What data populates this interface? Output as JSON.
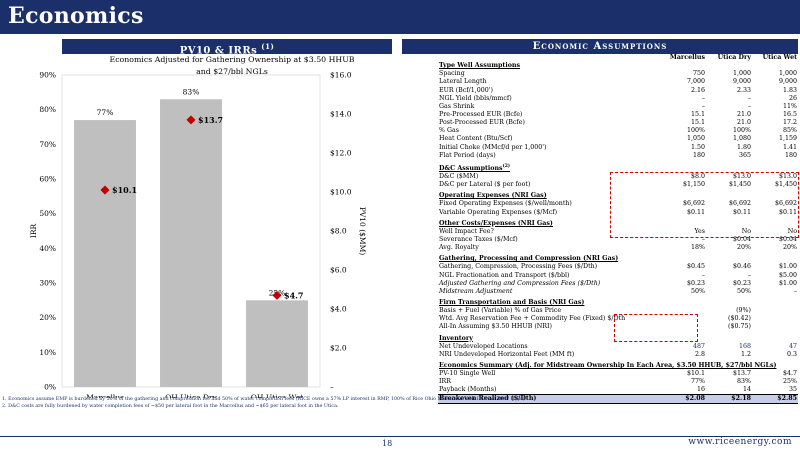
{
  "header": {
    "title": "Economics"
  },
  "left_panel": {
    "section_title": "PV10 & IRRs",
    "section_sup": "(1)",
    "chart_title_line1": "Economics Adjusted for Gathering Ownership at $3.50 HHUB",
    "chart_title_line2": "and $27/bbl NGLs"
  },
  "chart_data": {
    "type": "bar",
    "title": "Economics Adjusted for Gathering Ownership at $3.50 HHUB and $27/bbl NGLs",
    "categories": [
      "Marcellus",
      "OH Utica Dry",
      "OH Utica Wet"
    ],
    "series": [
      {
        "name": "IRR",
        "kind": "bar",
        "axis": "left",
        "values": [
          77,
          83,
          25
        ],
        "labels": [
          "77%",
          "83%",
          "25%"
        ],
        "color": "#bfbfbf"
      },
      {
        "name": "PV10",
        "kind": "marker",
        "axis": "right",
        "values": [
          10.1,
          13.7,
          4.7
        ],
        "labels": [
          "$10.1",
          "$13.7",
          "$4.7"
        ],
        "color": "#c00000"
      }
    ],
    "ylabel": "IRR",
    "y2label": "PV10 ($MM)",
    "ylim": [
      0,
      90
    ],
    "y2lim": [
      0,
      16
    ],
    "yticks": [
      "0%",
      "10%",
      "20%",
      "30%",
      "40%",
      "50%",
      "60%",
      "70%",
      "80%",
      "90%"
    ],
    "y2ticks": [
      "–",
      "$2.0",
      "$4.0",
      "$6.0",
      "$8.0",
      "$10.0",
      "$12.0",
      "$14.0",
      "$16.0"
    ],
    "legend": "bottom"
  },
  "right_panel": {
    "section_title": "Economic Assumptions",
    "columns": [
      "Marcellus",
      "Utica Dry",
      "Utica Wet"
    ],
    "rows": [
      {
        "type": "sec",
        "label": "Type Well Assumptions",
        "values": [
          "",
          "",
          ""
        ]
      },
      {
        "type": "row",
        "label": "Spacing",
        "values": [
          "750",
          "1,000",
          "1,000"
        ]
      },
      {
        "type": "row",
        "label": "Lateral Length",
        "values": [
          "7,000",
          "9,000",
          "9,000"
        ]
      },
      {
        "type": "row",
        "label": "EUR (Bcf/1,000')",
        "values": [
          "2.16",
          "2.33",
          "1.83"
        ]
      },
      {
        "type": "row",
        "label": "NGL Yield (bbls/mmcf)",
        "values": [
          "–",
          "–",
          "26"
        ]
      },
      {
        "type": "row",
        "label": "Gas Shrink",
        "values": [
          "–",
          "–",
          "11%"
        ]
      },
      {
        "type": "row",
        "label": "Pre-Processed EUR (Bcfe)",
        "values": [
          "15.1",
          "21.0",
          "16.5"
        ]
      },
      {
        "type": "row",
        "label": "Post-Processed EUR (Bcfe)",
        "values": [
          "15.1",
          "21.0",
          "17.2"
        ]
      },
      {
        "type": "row",
        "label": "% Gas",
        "values": [
          "100%",
          "100%",
          "85%"
        ]
      },
      {
        "type": "row",
        "label": "Heat Content (Btu/Scf)",
        "values": [
          "1,050",
          "1,080",
          "1,159"
        ]
      },
      {
        "type": "row",
        "label": "Initial Choke (MMcf/d per 1,000')",
        "values": [
          "1.50",
          "1.80",
          "1.41"
        ]
      },
      {
        "type": "row",
        "label": "Flat Period (days)",
        "values": [
          "180",
          "365",
          "180"
        ]
      },
      {
        "type": "gap"
      },
      {
        "type": "sec",
        "label": "D&C Assumptions",
        "sup": "(2)",
        "values": [
          "",
          "",
          ""
        ]
      },
      {
        "type": "row",
        "label": "D&C ($MM)",
        "values": [
          "$8.0",
          "$13.0",
          "$13.0"
        ]
      },
      {
        "type": "row",
        "label": "D&C per Lateral ($ per foot)",
        "values": [
          "$1,150",
          "$1,450",
          "$1,450"
        ]
      },
      {
        "type": "gap"
      },
      {
        "type": "sec",
        "label": "Operating Expenses (NRI Gas)",
        "values": [
          "",
          "",
          ""
        ]
      },
      {
        "type": "row",
        "label": "Fixed Operating Expenses ($/well/month)",
        "values": [
          "$6,692",
          "$6,692",
          "$6,692"
        ]
      },
      {
        "type": "row",
        "label": "Variable Operating Expenses ($/Mcf)",
        "values": [
          "$0.11",
          "$0.11",
          "$0.11"
        ]
      },
      {
        "type": "gap"
      },
      {
        "type": "sec",
        "label": "Other Costs/Expenses (NRI Gas)",
        "values": [
          "",
          "",
          ""
        ]
      },
      {
        "type": "row",
        "label": "Well Impact Fee?",
        "values": [
          "Yes",
          "No",
          "No"
        ]
      },
      {
        "type": "row",
        "label": "Severance Taxes ($/Mcf)",
        "values": [
          "–",
          "$0.04",
          "$0.04"
        ]
      },
      {
        "type": "row",
        "label": "Avg. Royalty",
        "values": [
          "18%",
          "20%",
          "20%"
        ]
      },
      {
        "type": "gap"
      },
      {
        "type": "sec",
        "label": "Gathering, Processing and Compression (NRI Gas)",
        "values": [
          "",
          "",
          ""
        ]
      },
      {
        "type": "row",
        "label": "Gathering, Compression, Processing Fees ($/Dth)",
        "values": [
          "$0.45",
          "$0.46",
          "$1.00"
        ]
      },
      {
        "type": "row",
        "label": "NGL Fractionation and Transport ($/bbl)",
        "values": [
          "–",
          "–",
          "$5.00"
        ]
      },
      {
        "type": "row",
        "label": "Adjusted Gathering and Compression Fees ($/Dth)",
        "italic": true,
        "values": [
          "$0.23",
          "$0.23",
          "$1.00"
        ]
      },
      {
        "type": "row",
        "label": "Midstream Adjustment",
        "italic": true,
        "values": [
          "50%",
          "50%",
          "–"
        ]
      },
      {
        "type": "gap"
      },
      {
        "type": "sec",
        "label": "Firm Transportation and Basis (NRI Gas)",
        "values": [
          "",
          "",
          ""
        ]
      },
      {
        "type": "row",
        "label": "Basis + Fuel (Variable) % of Gas Price",
        "values": [
          "",
          "(9%)",
          ""
        ]
      },
      {
        "type": "row",
        "label": "Wtd. Avg Reservation Fee + Commodity Fee (Fixed) $/Dth",
        "values": [
          "",
          "($0.42)",
          ""
        ]
      },
      {
        "type": "row",
        "label": "All-In Assuming $3.50 HHUB (NRI)",
        "values": [
          "",
          "($0.75)",
          ""
        ]
      },
      {
        "type": "gap"
      },
      {
        "type": "sec",
        "label": "Inventory",
        "values": [
          "",
          "",
          ""
        ]
      },
      {
        "type": "row",
        "label": "Net Undeveloped Locations",
        "blue": true,
        "values": [
          "487",
          "168",
          "47"
        ]
      },
      {
        "type": "row",
        "label": "NRI Undeveloped Horizontal Feet (MM ft)",
        "values": [
          "2.8",
          "1.2",
          "0.3"
        ]
      },
      {
        "type": "gap"
      },
      {
        "type": "summary",
        "label": "Economics Summary (Adj. for Midstream Ownership In Each Area, $3.50 HHUB, $27/bbl NGLs)",
        "values": [
          "",
          "",
          ""
        ]
      },
      {
        "type": "row",
        "label": "PV-10 Single Well",
        "values": [
          "$10.1",
          "$13.7",
          "$4.7"
        ]
      },
      {
        "type": "row",
        "label": "IRR",
        "values": [
          "77%",
          "83%",
          "25%"
        ]
      },
      {
        "type": "row",
        "label": "Payback (Months)",
        "values": [
          "16",
          "14",
          "35"
        ]
      },
      {
        "type": "breakeven",
        "label": "Breakeven Realized ($/Dth)",
        "values": [
          "$2.08",
          "$2.18",
          "$2.85"
        ]
      }
    ]
  },
  "footnotes": [
    "1.     Economics assume EMP is burdened by 50% of the gathering and compression fee and 50% of water completion fees (RICE owns a 57% LP interest in RMP, 100% of Rice Ohio Midstream and 100% of RMP IDRs).",
    "2.     D&C costs are fully burdened by water completion fees of ~$50 per lateral foot in the Marcellus and ~$65 per lateral foot in the Utica."
  ],
  "footer": {
    "page_number": "18",
    "website": "www.riceenergy.com"
  }
}
